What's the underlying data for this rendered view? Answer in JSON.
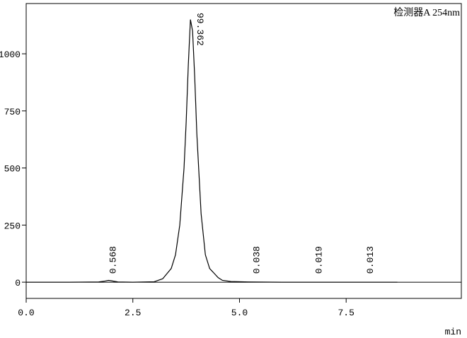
{
  "chart_data": {
    "type": "line",
    "detector_label": "检测器A 254nm",
    "x_unit": "min",
    "xlim": [
      0,
      10.2
    ],
    "ylim": [
      -71,
      1220
    ],
    "xticks": [
      {
        "value": 0,
        "label": "0.0"
      },
      {
        "value": 2.5,
        "label": "2.5"
      },
      {
        "value": 5,
        "label": "5.0"
      },
      {
        "value": 7.5,
        "label": "7.5"
      }
    ],
    "yticks": [
      0,
      250,
      500,
      750,
      1000
    ],
    "color": "#000000",
    "x": [
      0,
      1.0,
      1.7,
      1.85,
      1.93,
      2.0,
      2.15,
      2.5,
      3.0,
      3.2,
      3.4,
      3.5,
      3.6,
      3.7,
      3.75,
      3.8,
      3.85,
      3.9,
      3.95,
      4.0,
      4.1,
      4.2,
      4.3,
      4.35,
      4.4,
      4.5,
      4.6,
      4.8,
      5.2,
      6.0,
      7.0,
      8.0,
      8.7
    ],
    "values": [
      0,
      0,
      1,
      5,
      8,
      6,
      1,
      0,
      2,
      15,
      60,
      120,
      250,
      500,
      700,
      950,
      1150,
      1100,
      900,
      650,
      300,
      120,
      60,
      50,
      40,
      20,
      8,
      3,
      1,
      0,
      0,
      0,
      0
    ],
    "peaks": [
      {
        "x": 1.93,
        "area": 0.568
      },
      {
        "x": 3.85,
        "area": 99.362
      },
      {
        "x": 5.3,
        "area": 0.038
      },
      {
        "x": 6.76,
        "area": 0.019
      },
      {
        "x": 7.96,
        "area": 0.013
      }
    ]
  }
}
